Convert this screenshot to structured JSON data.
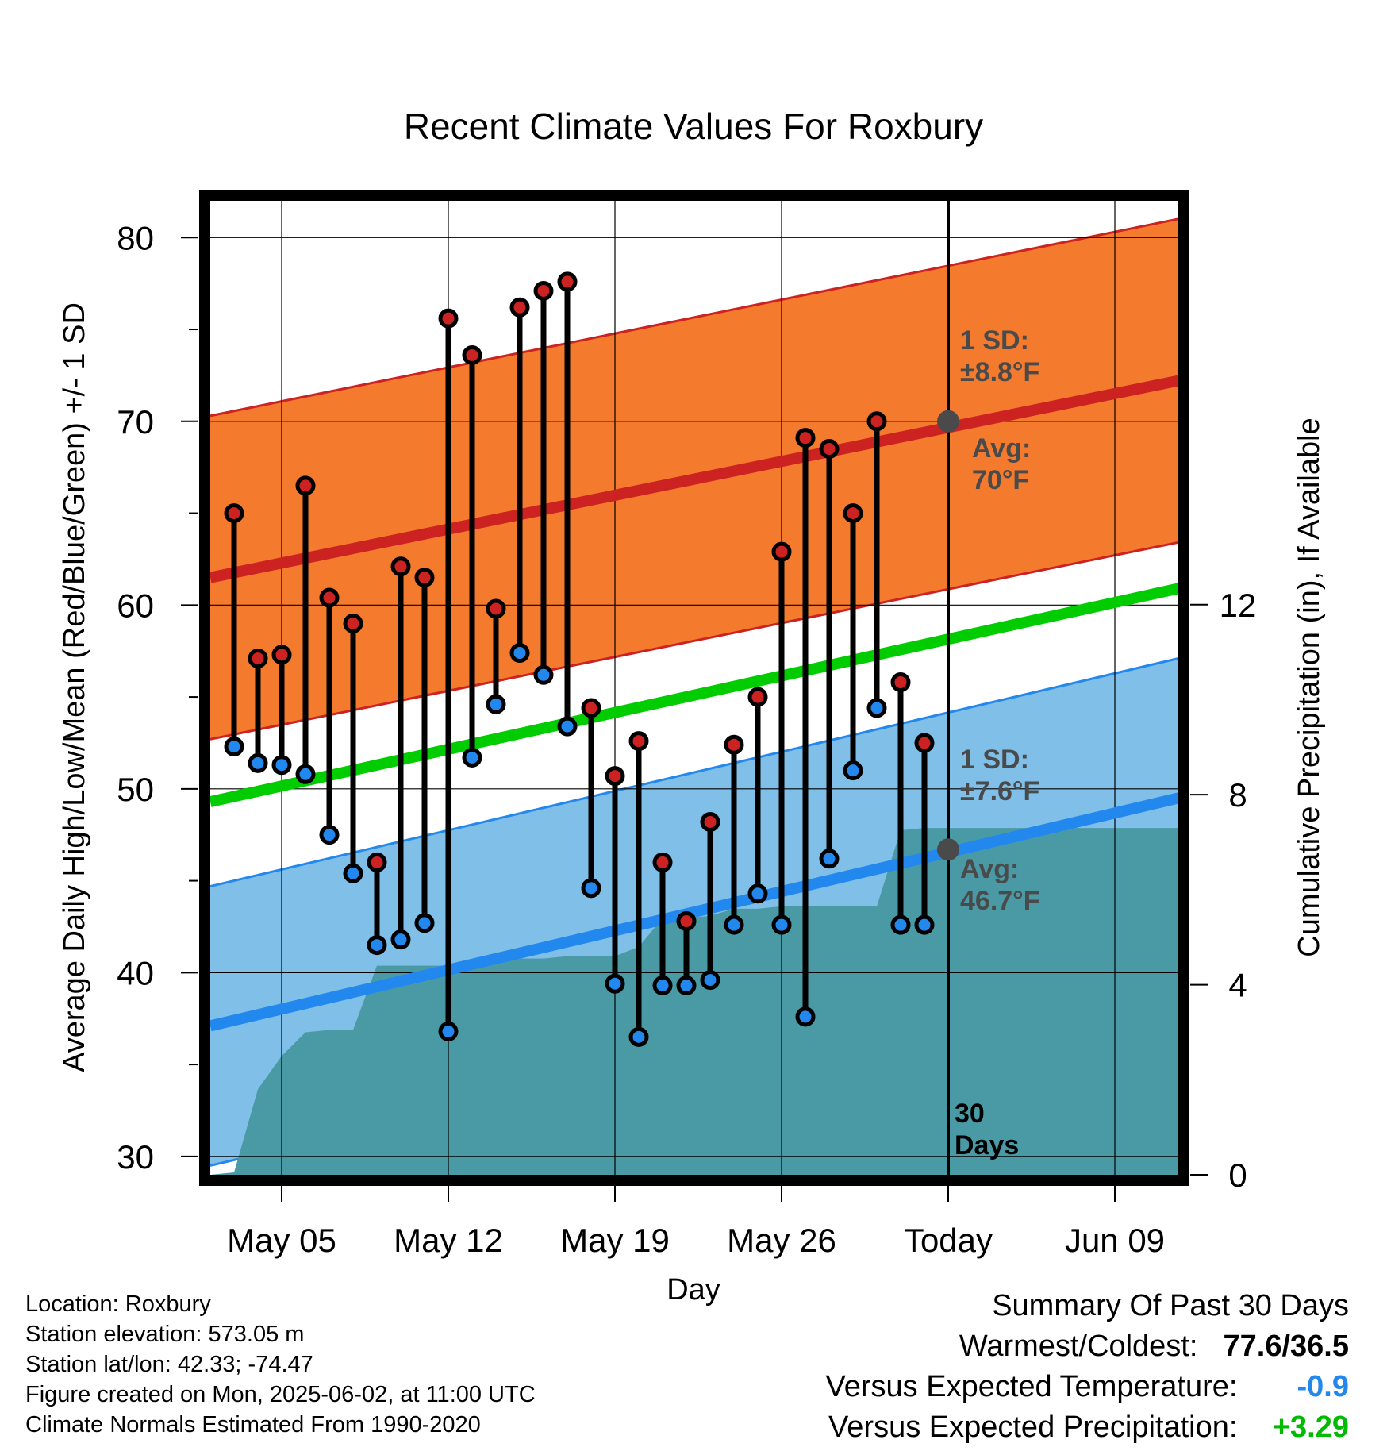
{
  "chart_data": {
    "type": "line",
    "title": "Recent Climate Values For Roxbury",
    "xlabel": "Day",
    "ylabel": "Average Daily High/Low/Mean (Red/Blue/Green) +/- 1 SD",
    "y2label": "Cumulative Precipitation (in), If Available",
    "ylim": [
      29,
      82
    ],
    "y2lim": [
      0,
      20.5
    ],
    "xlim": [
      "2025-05-02",
      "2025-06-12"
    ],
    "yticks": [
      "30",
      "40",
      "50",
      "60",
      "70",
      "80"
    ],
    "y2ticks": [
      "0",
      "4",
      "8",
      "12"
    ],
    "xticks": [
      "May 05",
      "May 12",
      "May 19",
      "May 26",
      "Today",
      "Jun 09"
    ],
    "today": "2025-06-02",
    "window_label": [
      "30",
      "Days"
    ],
    "series": [
      {
        "name": "High",
        "dates": [
          "2025-05-03",
          "2025-05-04",
          "2025-05-05",
          "2025-05-06",
          "2025-05-07",
          "2025-05-08",
          "2025-05-09",
          "2025-05-10",
          "2025-05-11",
          "2025-05-12",
          "2025-05-13",
          "2025-05-14",
          "2025-05-15",
          "2025-05-16",
          "2025-05-17",
          "2025-05-18",
          "2025-05-19",
          "2025-05-20",
          "2025-05-21",
          "2025-05-22",
          "2025-05-23",
          "2025-05-24",
          "2025-05-25",
          "2025-05-26",
          "2025-05-27",
          "2025-05-28",
          "2025-05-29",
          "2025-05-30",
          "2025-05-31",
          "2025-06-01"
        ],
        "values": [
          65.0,
          57.1,
          57.3,
          66.5,
          60.4,
          59.0,
          46.0,
          62.1,
          61.5,
          75.6,
          73.6,
          59.8,
          76.2,
          77.1,
          77.6,
          54.4,
          50.7,
          52.6,
          46.0,
          42.8,
          48.2,
          52.4,
          55.0,
          62.9,
          69.1,
          68.5,
          65.0,
          70.0,
          55.8,
          52.5
        ]
      },
      {
        "name": "Low",
        "dates": [
          "2025-05-03",
          "2025-05-04",
          "2025-05-05",
          "2025-05-06",
          "2025-05-07",
          "2025-05-08",
          "2025-05-09",
          "2025-05-10",
          "2025-05-11",
          "2025-05-12",
          "2025-05-13",
          "2025-05-14",
          "2025-05-15",
          "2025-05-16",
          "2025-05-17",
          "2025-05-18",
          "2025-05-19",
          "2025-05-20",
          "2025-05-21",
          "2025-05-22",
          "2025-05-23",
          "2025-05-24",
          "2025-05-25",
          "2025-05-26",
          "2025-05-27",
          "2025-05-28",
          "2025-05-29",
          "2025-05-30",
          "2025-05-31",
          "2025-06-01"
        ],
        "values": [
          52.3,
          51.4,
          51.3,
          50.8,
          47.5,
          45.4,
          41.5,
          41.8,
          42.7,
          36.8,
          51.7,
          54.6,
          57.4,
          56.2,
          53.4,
          44.6,
          39.4,
          36.5,
          39.3,
          39.3,
          39.6,
          42.6,
          44.3,
          42.6,
          37.6,
          46.2,
          51.0,
          54.4,
          42.6,
          42.6
        ]
      },
      {
        "name": "Cumulative Precipitation",
        "dates": [
          "2025-05-02",
          "2025-05-03",
          "2025-05-04",
          "2025-05-05",
          "2025-05-06",
          "2025-05-07",
          "2025-05-08",
          "2025-05-09",
          "2025-05-10",
          "2025-05-11",
          "2025-05-12",
          "2025-05-13",
          "2025-05-14",
          "2025-05-15",
          "2025-05-16",
          "2025-05-17",
          "2025-05-18",
          "2025-05-19",
          "2025-05-20",
          "2025-05-21",
          "2025-05-22",
          "2025-05-23",
          "2025-05-24",
          "2025-05-25",
          "2025-05-26",
          "2025-05-27",
          "2025-05-28",
          "2025-05-29",
          "2025-05-30",
          "2025-05-31",
          "2025-06-01",
          "2025-06-12"
        ],
        "values": [
          0.0,
          0.05,
          1.8,
          2.5,
          3.0,
          3.05,
          3.05,
          4.4,
          4.4,
          4.4,
          4.4,
          4.4,
          4.55,
          4.55,
          4.55,
          4.6,
          4.6,
          4.6,
          4.8,
          5.4,
          5.4,
          5.45,
          5.6,
          5.6,
          5.65,
          5.65,
          5.65,
          5.65,
          5.65,
          7.25,
          7.3,
          7.3
        ]
      },
      {
        "name": "Normal High",
        "dates": [
          "2025-05-02",
          "2025-06-12"
        ],
        "values": [
          61.5,
          72.3
        ],
        "sd": 8.8
      },
      {
        "name": "Normal Low",
        "dates": [
          "2025-05-02",
          "2025-06-12"
        ],
        "values": [
          37.1,
          49.6
        ],
        "sd": 7.6
      },
      {
        "name": "Normal Mean",
        "dates": [
          "2025-05-02",
          "2025-06-12"
        ],
        "values": [
          49.3,
          61.0
        ]
      }
    ],
    "annotations": {
      "high_sd": [
        "1 SD:",
        "±8.8°F"
      ],
      "high_avg": [
        "Avg:",
        "70°F"
      ],
      "low_sd": [
        "1 SD:",
        "±7.6°F"
      ],
      "low_avg": [
        "Avg:",
        "46.7°F"
      ],
      "today_high_avg": 70.0,
      "today_low_avg": 46.7
    },
    "colors": {
      "high": "#cc2222",
      "low": "#2288ee",
      "mean": "#00cc00",
      "high_band": "#f47a2e",
      "low_band": "#7fbfe8",
      "precip": "#4a9aa6"
    },
    "grid": true,
    "legend": "none"
  },
  "footer": {
    "location": "Location: Roxbury",
    "elevation": "Station elevation: 573.05 m",
    "latlon": "Station lat/lon: 42.33; -74.47",
    "created": "Figure created on Mon, 2025-06-02, at 11:00 UTC",
    "normals": "Climate Normals Estimated From 1990-2020"
  },
  "summary": {
    "title": "Summary Of Past 30 Days",
    "warm_cold_label": "Warmest/Coldest:",
    "warm_cold_value": "77.6/36.5",
    "temp_label": "Versus Expected Temperature:",
    "temp_value": "-0.9",
    "temp_color": "#2288ee",
    "precip_label": "Versus Expected Precipitation:",
    "precip_value": "+3.29",
    "precip_color": "#00bb00"
  }
}
